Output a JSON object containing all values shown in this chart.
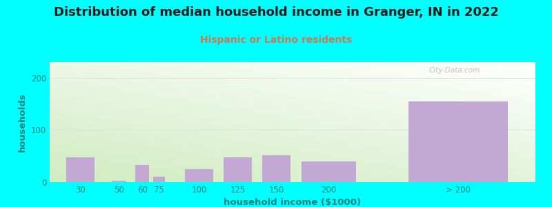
{
  "title": "Distribution of median household income in Granger, IN in 2022",
  "subtitle": "Hispanic or Latino residents",
  "xlabel": "household income ($1000)",
  "ylabel": "households",
  "background_color": "#00FFFF",
  "plot_bg_top_left": "#e8f5e0",
  "plot_bg_bottom_right": "#ffffff",
  "bar_color": "#C4A8D4",
  "categories": [
    "30",
    "50",
    "60",
    "75",
    "100",
    "125",
    "150",
    "200",
    "> 200"
  ],
  "bar_lefts": [
    10,
    40,
    55,
    67,
    87,
    112,
    137,
    162,
    230
  ],
  "bar_widths": [
    20,
    10,
    10,
    8,
    20,
    20,
    20,
    38,
    70
  ],
  "bar_heights": [
    47,
    2,
    33,
    10,
    25,
    47,
    52,
    40,
    155
  ],
  "xlim": [
    0,
    315
  ],
  "ylim": [
    0,
    230
  ],
  "yticks": [
    0,
    100,
    200
  ],
  "title_fontsize": 13,
  "subtitle_fontsize": 10,
  "axis_label_fontsize": 9.5,
  "tick_fontsize": 8.5,
  "watermark_text": "City-Data.com",
  "title_color": "#1a1a1a",
  "subtitle_color": "#cc7755",
  "axis_label_color": "#008080",
  "tick_color": "#008080",
  "grid_color": "#e0e0e0"
}
